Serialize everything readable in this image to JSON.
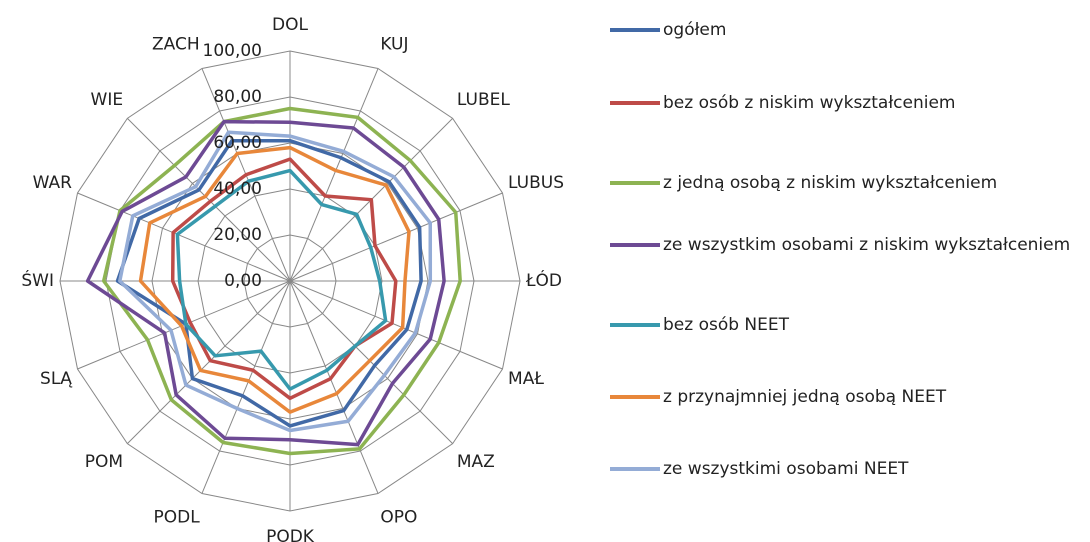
{
  "chart_data": {
    "type": "radar",
    "categories": [
      "DOL",
      "KUJ",
      "LUBEL",
      "LUBUS",
      "ŁÓD",
      "MAŁ",
      "MAZ",
      "OPO",
      "PODK",
      "PODL",
      "POM",
      "SLĄ",
      "ŚWI",
      "WAR",
      "WIE",
      "ZACH"
    ],
    "ylim": [
      0,
      100
    ],
    "yticks": [
      {
        "value": 0,
        "label": "0,00"
      },
      {
        "value": 20,
        "label": "20,00"
      },
      {
        "value": 40,
        "label": "40,00"
      },
      {
        "value": 60,
        "label": "60,00"
      },
      {
        "value": 80,
        "label": "80,00"
      },
      {
        "value": 100,
        "label": "100,00"
      }
    ],
    "grid": true,
    "legend": "right",
    "series": [
      {
        "name": "ogółem",
        "color": "#4169a6",
        "values": [
          61,
          58,
          61,
          61,
          57,
          55,
          52,
          61,
          63,
          54,
          60,
          49,
          75,
          71,
          56,
          66
        ]
      },
      {
        "name": "bez osób z niskim wykształceniem",
        "color": "#be4b48",
        "values": [
          53,
          40,
          50,
          40,
          46,
          48,
          40,
          46,
          51,
          42,
          49,
          47,
          51,
          55,
          49,
          50
        ]
      },
      {
        "name": "z jedną osobą z niskim wykształceniem",
        "color": "#8db352",
        "values": [
          75,
          77,
          74,
          78,
          74,
          70,
          70,
          79,
          75,
          76,
          73,
          67,
          81,
          80,
          71,
          75
        ]
      },
      {
        "name": "ze wszystkim osobami z niskim wykształceniem",
        "color": "#6d4a94",
        "values": [
          69,
          72,
          70,
          70,
          67,
          66,
          63,
          77,
          69,
          74,
          70,
          59,
          88,
          79,
          64,
          75
        ]
      },
      {
        "name": "bez osób NEET",
        "color": "#3799ad",
        "values": [
          48,
          36,
          41,
          38,
          39,
          45,
          40,
          42,
          47,
          33,
          46,
          49,
          48,
          53,
          46,
          47
        ]
      },
      {
        "name": "z przynajmniej jedną osobą NEET",
        "color": "#e8873a",
        "values": [
          58,
          52,
          59,
          56,
          50,
          53,
          49,
          53,
          57,
          47,
          55,
          51,
          65,
          66,
          52,
          60
        ]
      },
      {
        "name": "ze wszystkimi osobami NEET",
        "color": "#94acd6",
        "values": [
          63,
          61,
          64,
          66,
          61,
          59,
          58,
          66,
          65,
          60,
          64,
          56,
          74,
          74,
          58,
          70
        ]
      }
    ]
  }
}
